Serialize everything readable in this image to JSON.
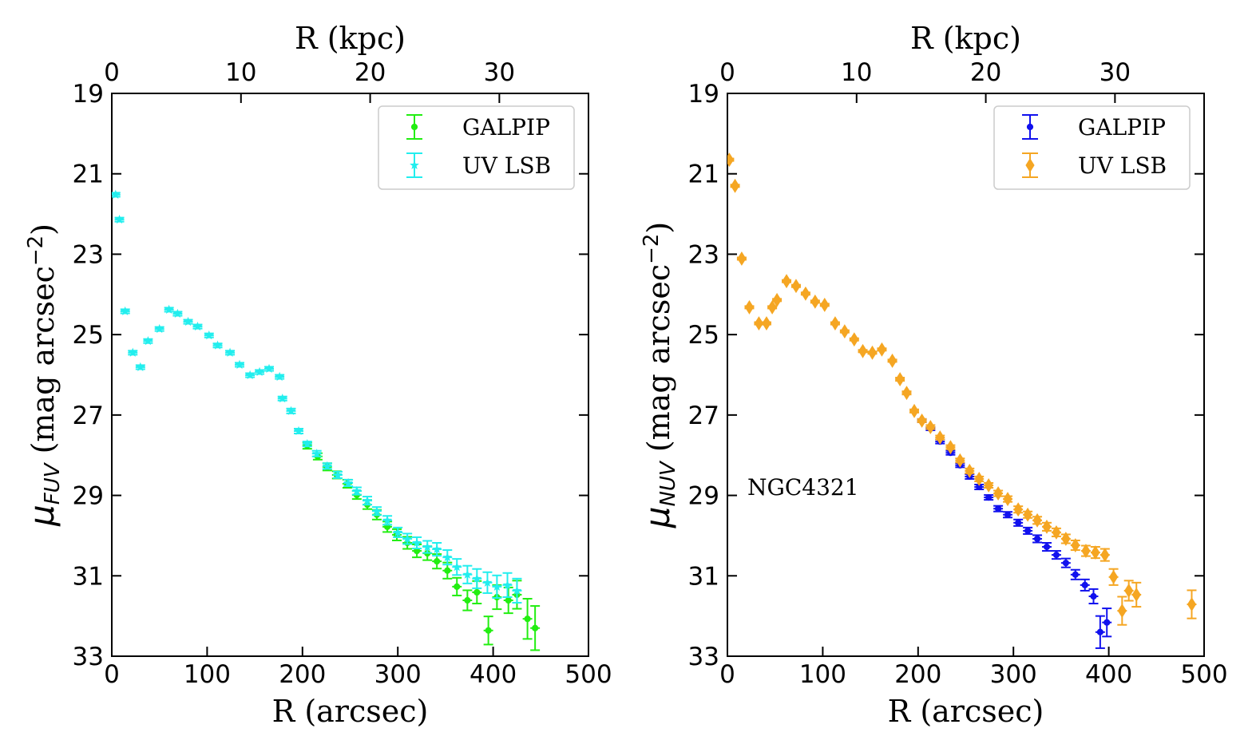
{
  "chart_data": [
    {
      "type": "scatter",
      "xlabel": "R (arcsec)",
      "x2label": "R (kpc)",
      "ylabel_parts": [
        "μ",
        "FUV",
        " (mag arcsec",
        "−2",
        ")"
      ],
      "xlim": [
        0,
        500
      ],
      "xticks": [
        0,
        100,
        200,
        300,
        400,
        500
      ],
      "x2lim": [
        0,
        36.9
      ],
      "x2ticks": [
        0,
        10,
        20,
        30
      ],
      "ylim": [
        33,
        19
      ],
      "yticks": [
        19,
        21,
        23,
        25,
        27,
        29,
        31,
        33
      ],
      "legend": "upper right",
      "series": [
        {
          "name": "GALPIP",
          "color": "#22ee11",
          "marker": "circle",
          "xerr": 5,
          "x": [
            205,
            216,
            226,
            236,
            247,
            257,
            268,
            278,
            289,
            299,
            310,
            320,
            331,
            341,
            352,
            362,
            373,
            383,
            395,
            404,
            416,
            425,
            436,
            444
          ],
          "values": [
            27.76,
            28.03,
            28.29,
            28.49,
            28.71,
            28.99,
            29.23,
            29.48,
            29.78,
            29.98,
            30.18,
            30.38,
            30.44,
            30.64,
            30.87,
            31.27,
            31.61,
            31.41,
            32.36,
            31.53,
            31.61,
            31.47,
            32.07,
            32.3
          ],
          "yerr": [
            0.08,
            0.08,
            0.09,
            0.09,
            0.1,
            0.1,
            0.11,
            0.12,
            0.13,
            0.14,
            0.15,
            0.16,
            0.17,
            0.18,
            0.2,
            0.22,
            0.25,
            0.28,
            0.35,
            0.3,
            0.32,
            0.35,
            0.5,
            0.55
          ]
        },
        {
          "name": "UV LSB",
          "color": "#22eeee",
          "marker": "star",
          "xerr": 5,
          "x": [
            4,
            8,
            14,
            22,
            30,
            38,
            50,
            60,
            69,
            80,
            90,
            102,
            111,
            124,
            134,
            145,
            155,
            165,
            176,
            179,
            188,
            196,
            205,
            215,
            226,
            237,
            248,
            257,
            268,
            278,
            289,
            300,
            310,
            320,
            331,
            341,
            352,
            362,
            373,
            383,
            394,
            404,
            415,
            425
          ],
          "values": [
            21.52,
            22.14,
            24.42,
            25.45,
            25.81,
            25.16,
            24.86,
            24.38,
            24.48,
            24.68,
            24.8,
            25.02,
            25.27,
            25.45,
            25.75,
            26.01,
            25.93,
            25.85,
            26.05,
            26.59,
            26.9,
            27.4,
            27.72,
            27.96,
            28.27,
            28.49,
            28.69,
            28.89,
            29.13,
            29.39,
            29.62,
            29.92,
            30.08,
            30.18,
            30.28,
            30.34,
            30.54,
            30.78,
            30.97,
            31.07,
            31.17,
            31.27,
            31.23,
            31.37
          ],
          "yerr": [
            0.05,
            0.05,
            0.05,
            0.05,
            0.05,
            0.05,
            0.05,
            0.05,
            0.05,
            0.05,
            0.05,
            0.05,
            0.05,
            0.05,
            0.05,
            0.05,
            0.05,
            0.05,
            0.05,
            0.05,
            0.06,
            0.06,
            0.06,
            0.07,
            0.07,
            0.08,
            0.08,
            0.09,
            0.1,
            0.1,
            0.11,
            0.12,
            0.13,
            0.14,
            0.15,
            0.16,
            0.18,
            0.2,
            0.22,
            0.24,
            0.26,
            0.28,
            0.3,
            0.3
          ]
        }
      ]
    },
    {
      "type": "scatter",
      "xlabel": "R (arcsec)",
      "x2label": "R (kpc)",
      "ylabel_parts": [
        "μ",
        "NUV",
        " (mag arcsec",
        "−2",
        ")"
      ],
      "annotation": "NGC4321",
      "xlim": [
        0,
        500
      ],
      "xticks": [
        0,
        100,
        200,
        300,
        400,
        500
      ],
      "x2lim": [
        0,
        36.9
      ],
      "x2ticks": [
        0,
        10,
        20,
        30
      ],
      "ylim": [
        33,
        19
      ],
      "yticks": [
        19,
        21,
        23,
        25,
        27,
        29,
        31,
        33
      ],
      "legend": "upper right",
      "series": [
        {
          "name": "GALPIP",
          "color": "#1111ee",
          "marker": "circle",
          "xerr": 5,
          "x": [
            204,
            213,
            223,
            234,
            244,
            254,
            264,
            274,
            284,
            294,
            305,
            315,
            325,
            335,
            345,
            355,
            365,
            375,
            384,
            391,
            398
          ],
          "values": [
            27.14,
            27.34,
            27.66,
            27.94,
            28.25,
            28.53,
            28.79,
            29.05,
            29.33,
            29.48,
            29.68,
            29.88,
            30.08,
            30.28,
            30.48,
            30.68,
            30.97,
            31.23,
            31.51,
            32.4,
            32.16
          ],
          "yerr": [
            0.04,
            0.04,
            0.05,
            0.05,
            0.05,
            0.06,
            0.06,
            0.06,
            0.07,
            0.07,
            0.08,
            0.08,
            0.09,
            0.1,
            0.1,
            0.11,
            0.12,
            0.14,
            0.18,
            0.4,
            0.35
          ]
        },
        {
          "name": "UV LSB",
          "color": "#f5a623",
          "marker": "diamond",
          "xerr": 5,
          "x": [
            2,
            8,
            15,
            23,
            33,
            41,
            47,
            52,
            62,
            72,
            82,
            92,
            102,
            113,
            123,
            133,
            142,
            152,
            162,
            173,
            181,
            188,
            196,
            204,
            213,
            223,
            234,
            244,
            254,
            264,
            274,
            284,
            294,
            305,
            315,
            325,
            335,
            345,
            355,
            365,
            376,
            386,
            396,
            405,
            414,
            421,
            429,
            487
          ],
          "values": [
            20.65,
            21.3,
            23.11,
            24.32,
            24.72,
            24.72,
            24.32,
            24.14,
            23.67,
            23.79,
            23.98,
            24.18,
            24.26,
            24.72,
            24.92,
            25.12,
            25.41,
            25.45,
            25.37,
            25.65,
            26.11,
            26.45,
            26.9,
            27.14,
            27.3,
            27.56,
            27.8,
            28.13,
            28.39,
            28.59,
            28.75,
            28.95,
            29.09,
            29.35,
            29.48,
            29.62,
            29.78,
            29.92,
            30.08,
            30.24,
            30.38,
            30.42,
            30.48,
            31.03,
            31.87,
            31.37,
            31.47,
            31.71
          ],
          "yerr": [
            0.03,
            0.03,
            0.03,
            0.03,
            0.03,
            0.03,
            0.03,
            0.03,
            0.03,
            0.03,
            0.03,
            0.03,
            0.03,
            0.03,
            0.03,
            0.03,
            0.03,
            0.03,
            0.03,
            0.03,
            0.04,
            0.04,
            0.04,
            0.04,
            0.05,
            0.05,
            0.05,
            0.05,
            0.06,
            0.06,
            0.06,
            0.07,
            0.07,
            0.08,
            0.08,
            0.09,
            0.1,
            0.1,
            0.11,
            0.12,
            0.13,
            0.14,
            0.15,
            0.2,
            0.35,
            0.25,
            0.3,
            0.35
          ]
        }
      ]
    }
  ]
}
